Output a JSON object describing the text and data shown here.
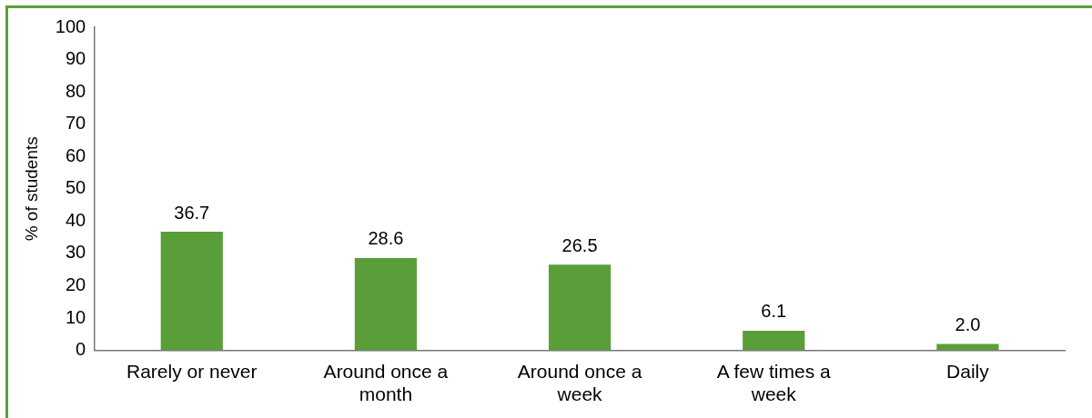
{
  "chart_data": {
    "type": "bar",
    "ylabel": "% of students",
    "categories": [
      "Rarely or never",
      "Around once a month",
      "Around once a week",
      "A few times a week",
      "Daily"
    ],
    "values": [
      36.7,
      28.6,
      26.5,
      6.1,
      2.0
    ],
    "value_labels": [
      "36.7",
      "28.6",
      "26.5",
      "6.1",
      "2.0"
    ],
    "color": "#5a9e3a",
    "ylim": [
      0,
      100
    ],
    "yticks": [
      0,
      10,
      20,
      30,
      40,
      50,
      60,
      70,
      80,
      90,
      100
    ],
    "grid": false,
    "legend": false
  }
}
